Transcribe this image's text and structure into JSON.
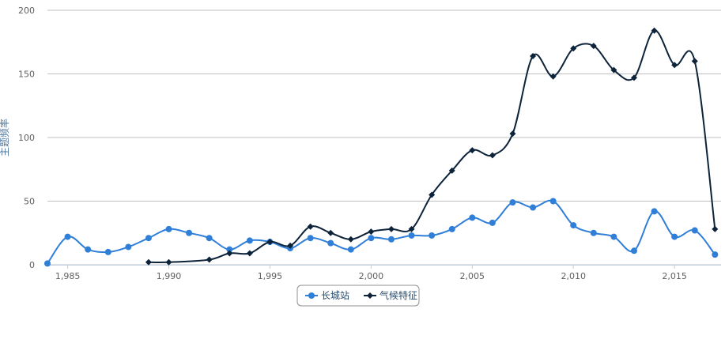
{
  "chart_data": {
    "type": "spline",
    "y_label": "主题频率",
    "xlim": [
      1984,
      2017.3
    ],
    "xticks": [
      {
        "value": 1985,
        "label": "1,985"
      },
      {
        "value": 1990,
        "label": "1,990"
      },
      {
        "value": 1995,
        "label": "1,995"
      },
      {
        "value": 2000,
        "label": "2,000"
      },
      {
        "value": 2005,
        "label": "2,005"
      },
      {
        "value": 2010,
        "label": "2,010"
      },
      {
        "value": 2015,
        "label": "2,015"
      }
    ],
    "ylim": [
      0,
      200
    ],
    "yticks": [
      0,
      50,
      100,
      150,
      200
    ],
    "grid": true,
    "legend": "bottom",
    "series": [
      {
        "name": "长城站",
        "color": "#2f7ed8",
        "marker": "circle",
        "x": [
          1984,
          1985,
          1986,
          1987,
          1988,
          1989,
          1990,
          1991,
          1992,
          1993,
          1994,
          1995,
          1996,
          1997,
          1998,
          1999,
          2000,
          2001,
          2002,
          2003,
          2004,
          2005,
          2006,
          2007,
          2008,
          2009,
          2010,
          2011,
          2012,
          2013,
          2014,
          2015,
          2016,
          2017
        ],
        "values": [
          1,
          22,
          12,
          10,
          14,
          21,
          28,
          25,
          21,
          12,
          19,
          18,
          13,
          21,
          17,
          12,
          21,
          20,
          23,
          23,
          28,
          37,
          33,
          49,
          45,
          50,
          31,
          25,
          22,
          11,
          42,
          22,
          27,
          8
        ]
      },
      {
        "name": "气候特征",
        "color": "#0d233a",
        "marker": "diamond",
        "x": [
          1989,
          1990,
          1992,
          1993,
          1994,
          1995,
          1996,
          1997,
          1998,
          1999,
          2000,
          2001,
          2002,
          2003,
          2004,
          2005,
          2006,
          2007,
          2008,
          2009,
          2010,
          2011,
          2012,
          2013,
          2014,
          2015,
          2016,
          2017
        ],
        "values": [
          2,
          2,
          4,
          9,
          9,
          18,
          15,
          30,
          25,
          20,
          26,
          28,
          28,
          55,
          74,
          90,
          86,
          103,
          164,
          148,
          170,
          172,
          153,
          147,
          184,
          157,
          160,
          28
        ]
      }
    ]
  }
}
